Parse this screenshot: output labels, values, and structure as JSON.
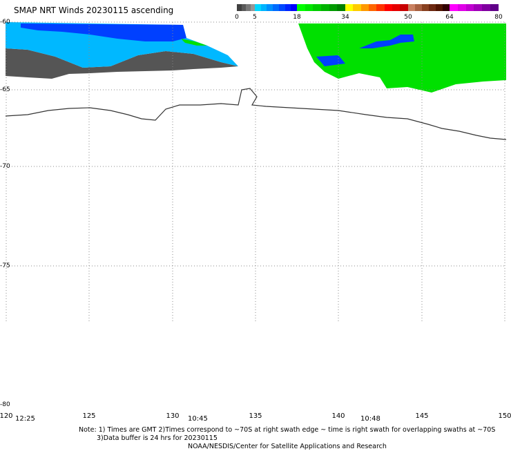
{
  "title": "SMAP NRT Winds 20230115 ascending",
  "color_scale": {
    "labels": [
      "0",
      "5",
      "18",
      "34",
      "50",
      "64",
      "80"
    ],
    "bands": [
      {
        "range": "0-5",
        "colors": [
          "#404040",
          "#5a5a5a",
          "#787878",
          "#969696"
        ]
      },
      {
        "range": "5-18",
        "colors": [
          "#00d8ff",
          "#00b4ff",
          "#0090ff",
          "#006cff",
          "#0048ff",
          "#0024ff",
          "#0000ff"
        ]
      },
      {
        "range": "18-34",
        "colors": [
          "#00ff00",
          "#00e600",
          "#00cc00",
          "#00b400",
          "#009a00",
          "#008000"
        ]
      },
      {
        "range": "34-50",
        "colors": [
          "#ffff00",
          "#ffcc00",
          "#ff9900",
          "#ff6600",
          "#ff3300",
          "#ff0000",
          "#e60000",
          "#c80000"
        ]
      },
      {
        "range": "50-64",
        "colors": [
          "#c88060",
          "#a86040",
          "#884020",
          "#6c2810",
          "#501400",
          "#300000"
        ]
      },
      {
        "range": "64-80",
        "colors": [
          "#ff00ff",
          "#e000e8",
          "#c000d0",
          "#a000b8",
          "#8000a0",
          "#600088"
        ]
      }
    ]
  },
  "lat_labels": [
    "-60",
    "-65",
    "-70",
    "-75",
    "-80"
  ],
  "lon_labels": [
    "120",
    "125",
    "130",
    "135",
    "140",
    "145",
    "150"
  ],
  "time_labels": [
    "12:25",
    "10:45",
    "10:48"
  ],
  "note_lines": [
    "Note: 1) Times are GMT 2)Times correspond to ~70S at right swath edge ~ time is right swath for overlapping swaths at ~70S",
    "3)Data buffer is 24 hrs for 20230115",
    "NOAA/NESDIS/Center for Satellite Applications and Research"
  ],
  "swath_colors": {
    "calm": "#555555",
    "light": "#00b8ff",
    "moderate": "#0040ff",
    "strong": "#00e000",
    "coast": "#333333",
    "grid": "#888888"
  }
}
